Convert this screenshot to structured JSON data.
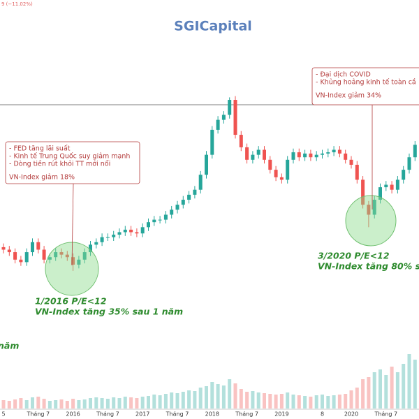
{
  "chart_data": {
    "type": "candlestick",
    "title": "SGICapital",
    "header_fragment": "9 (−11.02%)",
    "categories": [
      "5",
      null,
      null,
      null,
      null,
      null,
      "Tháng 7",
      null,
      null,
      null,
      null,
      null,
      "2016",
      null,
      null,
      null,
      null,
      null,
      "Tháng 7",
      null,
      null,
      null,
      null,
      null,
      "2017",
      null,
      null,
      null,
      null,
      null,
      "Tháng 7",
      null,
      null,
      null,
      null,
      null,
      "2018",
      null,
      null,
      null,
      null,
      null,
      "Tháng 7",
      null,
      null,
      null,
      null,
      null,
      "2019",
      null,
      null,
      null,
      null,
      null,
      null,
      "8",
      null,
      null,
      null,
      null,
      "2020",
      null,
      null,
      null,
      null,
      null,
      "Tháng 7",
      null,
      null,
      null,
      null,
      null
    ],
    "open": [
      610,
      600,
      590,
      560,
      550,
      590,
      630,
      600,
      560,
      570,
      590,
      580,
      570,
      540,
      560,
      590,
      620,
      630,
      650,
      650,
      660,
      670,
      680,
      670,
      665,
      690,
      710,
      720,
      720,
      740,
      760,
      780,
      800,
      820,
      840,
      900,
      980,
      1080,
      1120,
      1140,
      1200,
      1060,
      1010,
      960,
      980,
      1000,
      960,
      920,
      890,
      880,
      960,
      990,
      970,
      985,
      970,
      980,
      985,
      990,
      1000,
      985,
      960,
      940,
      880,
      780,
      740,
      800,
      850,
      860,
      840,
      880,
      920,
      970
    ],
    "high": [
      625,
      615,
      605,
      575,
      605,
      645,
      645,
      615,
      585,
      605,
      605,
      595,
      585,
      575,
      605,
      635,
      645,
      665,
      665,
      675,
      685,
      695,
      695,
      685,
      705,
      725,
      735,
      735,
      755,
      775,
      795,
      815,
      835,
      855,
      915,
      995,
      1095,
      1135,
      1155,
      1210,
      1215,
      1075,
      1025,
      995,
      1015,
      1015,
      975,
      935,
      905,
      975,
      1005,
      1005,
      1000,
      1000,
      995,
      1000,
      1005,
      1015,
      1015,
      1000,
      975,
      955,
      895,
      795,
      815,
      865,
      875,
      875,
      895,
      935,
      985,
      1035
    ],
    "low": [
      585,
      575,
      545,
      535,
      535,
      575,
      585,
      545,
      545,
      555,
      565,
      555,
      515,
      525,
      545,
      575,
      605,
      615,
      635,
      635,
      645,
      655,
      655,
      650,
      650,
      675,
      695,
      705,
      705,
      725,
      745,
      765,
      785,
      805,
      825,
      885,
      965,
      1065,
      1105,
      1125,
      1045,
      995,
      945,
      945,
      965,
      945,
      905,
      875,
      865,
      865,
      945,
      955,
      955,
      955,
      955,
      965,
      970,
      975,
      970,
      945,
      925,
      865,
      765,
      690,
      725,
      785,
      835,
      825,
      825,
      865,
      905,
      955
    ],
    "close": [
      600,
      590,
      560,
      550,
      590,
      630,
      600,
      560,
      570,
      590,
      580,
      570,
      540,
      560,
      590,
      620,
      630,
      650,
      650,
      660,
      670,
      680,
      670,
      665,
      690,
      710,
      720,
      720,
      740,
      760,
      780,
      800,
      820,
      840,
      900,
      980,
      1080,
      1120,
      1140,
      1200,
      1060,
      1010,
      960,
      980,
      1000,
      960,
      920,
      890,
      880,
      960,
      990,
      970,
      985,
      970,
      980,
      985,
      990,
      1000,
      985,
      960,
      940,
      880,
      780,
      740,
      800,
      850,
      860,
      840,
      880,
      920,
      970,
      1020
    ],
    "volume": [
      120,
      110,
      130,
      150,
      120,
      160,
      170,
      140,
      110,
      120,
      130,
      110,
      140,
      120,
      130,
      150,
      160,
      150,
      140,
      160,
      150,
      170,
      160,
      150,
      170,
      180,
      200,
      190,
      210,
      230,
      220,
      240,
      260,
      250,
      300,
      320,
      380,
      350,
      330,
      420,
      360,
      280,
      240,
      250,
      230,
      220,
      210,
      200,
      210,
      230,
      200,
      190,
      180,
      170,
      190,
      200,
      180,
      190,
      200,
      210,
      260,
      300,
      420,
      450,
      520,
      560,
      480,
      600,
      520,
      640,
      780,
      700
    ],
    "ylim": [
      0,
      1600
    ],
    "volume_lim": [
      0,
      1000
    ],
    "up_color": "#26a69a",
    "down_color": "#ef5350",
    "callouts": [
      {
        "lines": [
          "- FED tăng lãi suất",
          "- Kinh tế Trung Quốc suy giảm mạnh",
          "- Dòng tiền rút khỏi TT mới nổi"
        ],
        "result": "VN-Index giảm 18%"
      },
      {
        "lines": [
          "- Đại dịch COVID",
          "- Khủng hoảng kinh tế toàn cầ"
        ],
        "result": "VN-Index giảm 34%"
      }
    ],
    "notes": [
      {
        "lines": [
          "1/2016  P/E<12",
          "VN-Index tăng 35% sau 1 năm"
        ]
      },
      {
        "lines": [
          "3/2020  P/E<12",
          "VN-Index tăng 80% s"
        ]
      }
    ],
    "side_fragment": "năm"
  }
}
